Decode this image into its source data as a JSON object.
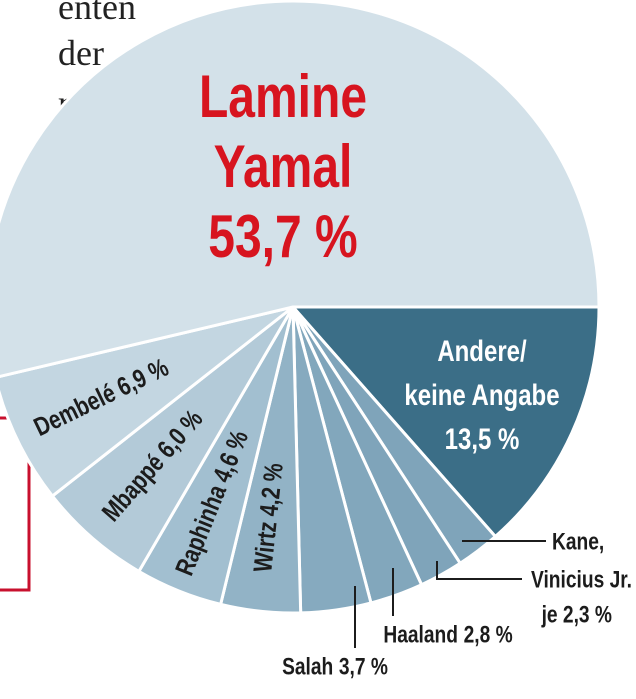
{
  "text_fragments": [
    "enten",
    "der",
    "r"
  ],
  "chart_data": {
    "type": "pie",
    "categories": [
      "Andere/\nkeine Angabe",
      "Kane,",
      "Vinicius Jr.",
      "Haaland",
      "Salah",
      "Wirtz",
      "Raphinha",
      "Mbappé",
      "Dembelé",
      "Lamine\nYamal"
    ],
    "values": [
      13.5,
      2.3,
      2.3,
      2.8,
      3.7,
      4.2,
      4.6,
      6.0,
      6.9,
      53.7
    ],
    "value_labels": [
      "13,5 %",
      null,
      "je 2,3 %",
      "2,8 %",
      "3,7 %",
      "4,2 %",
      "4,6 %",
      "6,0 %",
      "6,9 %",
      "53,7 %"
    ],
    "colors": [
      "#3b6e87",
      "#7fa4ba",
      "#7fa4ba",
      "#82a7bc",
      "#86aabf",
      "#92b3c6",
      "#a2bfd0",
      "#b3cad8",
      "#c3d6e1",
      "#d3e1e9"
    ]
  }
}
